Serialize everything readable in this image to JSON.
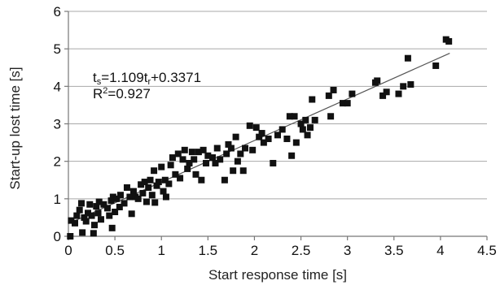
{
  "chart_data": {
    "type": "scatter",
    "xlabel": "Start response time [s]",
    "ylabel": "Start-up lost time [s]",
    "xlim": [
      0,
      4.5
    ],
    "ylim": [
      0,
      6
    ],
    "xticks": [
      "0",
      "0.5",
      "1",
      "1.5",
      "2",
      "2.5",
      "3",
      "3.5",
      "4",
      "4.5"
    ],
    "yticks": [
      "0",
      "1",
      "2",
      "3",
      "4",
      "5",
      "6"
    ],
    "grid": "horizontal",
    "point_color": "#111111",
    "trendline": {
      "slope": 1.109,
      "intercept": 0.3371,
      "x_range": [
        0,
        4.1
      ]
    },
    "annotation": {
      "eq_prefix": "t",
      "eq_sub1": "s",
      "eq_mid": "=1.109t",
      "eq_sub2": "r",
      "eq_suffix": "+0.3371",
      "r2_prefix": "R",
      "r2_sup": "2",
      "r2_suffix": "=0.927"
    },
    "points": [
      {
        "x": 0.02,
        "y": 0.0
      },
      {
        "x": 0.03,
        "y": 0.42
      },
      {
        "x": 0.07,
        "y": 0.35
      },
      {
        "x": 0.09,
        "y": 0.55
      },
      {
        "x": 0.12,
        "y": 0.7
      },
      {
        "x": 0.14,
        "y": 0.88
      },
      {
        "x": 0.15,
        "y": 0.1
      },
      {
        "x": 0.17,
        "y": 0.5
      },
      {
        "x": 0.19,
        "y": 0.4
      },
      {
        "x": 0.21,
        "y": 0.62
      },
      {
        "x": 0.23,
        "y": 0.85
      },
      {
        "x": 0.25,
        "y": 0.55
      },
      {
        "x": 0.27,
        "y": 0.08
      },
      {
        "x": 0.28,
        "y": 0.3
      },
      {
        "x": 0.3,
        "y": 0.8
      },
      {
        "x": 0.32,
        "y": 0.62
      },
      {
        "x": 0.33,
        "y": 0.92
      },
      {
        "x": 0.35,
        "y": 0.45
      },
      {
        "x": 0.38,
        "y": 0.85
      },
      {
        "x": 0.42,
        "y": 0.75
      },
      {
        "x": 0.44,
        "y": 0.55
      },
      {
        "x": 0.46,
        "y": 0.95
      },
      {
        "x": 0.47,
        "y": 0.22
      },
      {
        "x": 0.48,
        "y": 1.05
      },
      {
        "x": 0.5,
        "y": 0.65
      },
      {
        "x": 0.52,
        "y": 1.0
      },
      {
        "x": 0.55,
        "y": 0.78
      },
      {
        "x": 0.56,
        "y": 1.1
      },
      {
        "x": 0.6,
        "y": 0.88
      },
      {
        "x": 0.63,
        "y": 1.3
      },
      {
        "x": 0.66,
        "y": 1.05
      },
      {
        "x": 0.68,
        "y": 0.6
      },
      {
        "x": 0.7,
        "y": 1.2
      },
      {
        "x": 0.72,
        "y": 1.05
      },
      {
        "x": 0.75,
        "y": 1.0
      },
      {
        "x": 0.78,
        "y": 1.38
      },
      {
        "x": 0.8,
        "y": 1.15
      },
      {
        "x": 0.82,
        "y": 1.45
      },
      {
        "x": 0.84,
        "y": 0.92
      },
      {
        "x": 0.86,
        "y": 1.3
      },
      {
        "x": 0.88,
        "y": 1.5
      },
      {
        "x": 0.9,
        "y": 1.1
      },
      {
        "x": 0.92,
        "y": 1.75
      },
      {
        "x": 0.93,
        "y": 0.9
      },
      {
        "x": 0.95,
        "y": 1.35
      },
      {
        "x": 0.97,
        "y": 1.45
      },
      {
        "x": 1.0,
        "y": 1.85
      },
      {
        "x": 1.02,
        "y": 1.2
      },
      {
        "x": 1.04,
        "y": 1.5
      },
      {
        "x": 1.05,
        "y": 1.05
      },
      {
        "x": 1.08,
        "y": 1.4
      },
      {
        "x": 1.1,
        "y": 1.9
      },
      {
        "x": 1.12,
        "y": 2.1
      },
      {
        "x": 1.15,
        "y": 1.65
      },
      {
        "x": 1.18,
        "y": 2.2
      },
      {
        "x": 1.2,
        "y": 1.55
      },
      {
        "x": 1.23,
        "y": 2.05
      },
      {
        "x": 1.25,
        "y": 2.3
      },
      {
        "x": 1.28,
        "y": 1.8
      },
      {
        "x": 1.3,
        "y": 1.95
      },
      {
        "x": 1.33,
        "y": 2.25
      },
      {
        "x": 1.35,
        "y": 2.05
      },
      {
        "x": 1.37,
        "y": 1.65
      },
      {
        "x": 1.4,
        "y": 2.25
      },
      {
        "x": 1.43,
        "y": 1.5
      },
      {
        "x": 1.45,
        "y": 2.3
      },
      {
        "x": 1.48,
        "y": 1.95
      },
      {
        "x": 1.5,
        "y": 2.15
      },
      {
        "x": 1.55,
        "y": 2.1
      },
      {
        "x": 1.58,
        "y": 1.95
      },
      {
        "x": 1.6,
        "y": 2.35
      },
      {
        "x": 1.63,
        "y": 2.05
      },
      {
        "x": 1.68,
        "y": 1.5
      },
      {
        "x": 1.7,
        "y": 2.2
      },
      {
        "x": 1.72,
        "y": 2.45
      },
      {
        "x": 1.75,
        "y": 2.35
      },
      {
        "x": 1.77,
        "y": 1.75
      },
      {
        "x": 1.8,
        "y": 2.65
      },
      {
        "x": 1.82,
        "y": 2.0
      },
      {
        "x": 1.85,
        "y": 2.2
      },
      {
        "x": 1.88,
        "y": 1.75
      },
      {
        "x": 1.9,
        "y": 2.35
      },
      {
        "x": 1.95,
        "y": 2.95
      },
      {
        "x": 1.98,
        "y": 2.3
      },
      {
        "x": 2.02,
        "y": 2.9
      },
      {
        "x": 2.05,
        "y": 2.65
      },
      {
        "x": 2.08,
        "y": 2.75
      },
      {
        "x": 2.1,
        "y": 2.5
      },
      {
        "x": 2.15,
        "y": 2.6
      },
      {
        "x": 2.2,
        "y": 1.95
      },
      {
        "x": 2.25,
        "y": 2.7
      },
      {
        "x": 2.3,
        "y": 2.85
      },
      {
        "x": 2.35,
        "y": 2.6
      },
      {
        "x": 2.38,
        "y": 3.2
      },
      {
        "x": 2.4,
        "y": 2.15
      },
      {
        "x": 2.43,
        "y": 3.2
      },
      {
        "x": 2.45,
        "y": 2.5
      },
      {
        "x": 2.5,
        "y": 3.0
      },
      {
        "x": 2.52,
        "y": 2.85
      },
      {
        "x": 2.55,
        "y": 3.1
      },
      {
        "x": 2.57,
        "y": 2.7
      },
      {
        "x": 2.6,
        "y": 2.9
      },
      {
        "x": 2.62,
        "y": 3.65
      },
      {
        "x": 2.65,
        "y": 3.1
      },
      {
        "x": 2.8,
        "y": 3.75
      },
      {
        "x": 2.82,
        "y": 3.2
      },
      {
        "x": 2.85,
        "y": 3.9
      },
      {
        "x": 2.95,
        "y": 3.55
      },
      {
        "x": 3.0,
        "y": 3.55
      },
      {
        "x": 3.05,
        "y": 3.8
      },
      {
        "x": 3.3,
        "y": 4.1
      },
      {
        "x": 3.32,
        "y": 4.15
      },
      {
        "x": 3.38,
        "y": 3.75
      },
      {
        "x": 3.42,
        "y": 3.85
      },
      {
        "x": 3.55,
        "y": 3.8
      },
      {
        "x": 3.6,
        "y": 4.0
      },
      {
        "x": 3.65,
        "y": 4.75
      },
      {
        "x": 3.68,
        "y": 4.05
      },
      {
        "x": 3.95,
        "y": 4.55
      },
      {
        "x": 4.06,
        "y": 5.25
      },
      {
        "x": 4.09,
        "y": 5.2
      }
    ]
  }
}
